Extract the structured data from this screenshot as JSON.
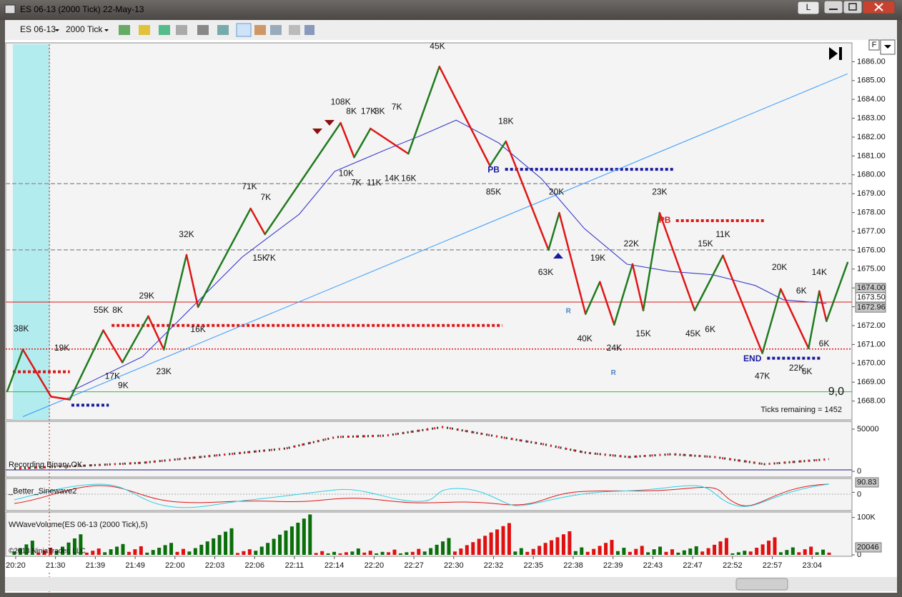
{
  "window": {
    "title": "ES 06-13 (2000 Tick)  22-May-13",
    "layout_button": "L"
  },
  "toolbar": {
    "instrument": "ES 06-13",
    "period": "2000 Tick"
  },
  "chart_data": {
    "type": "line",
    "xlim": [
      -0.25,
      21
    ],
    "xticks": [
      {
        "value": 0,
        "label": "20:20"
      },
      {
        "value": 1,
        "label": "21:30"
      },
      {
        "value": 2,
        "label": "21:39"
      },
      {
        "value": 3,
        "label": "21:49"
      },
      {
        "value": 4,
        "label": "22:00"
      },
      {
        "value": 5,
        "label": "22:03"
      },
      {
        "value": 6,
        "label": "22:06"
      },
      {
        "value": 7,
        "label": "22:11"
      },
      {
        "value": 8,
        "label": "22:14"
      },
      {
        "value": 9,
        "label": "22:20"
      },
      {
        "value": 10,
        "label": "22:27"
      },
      {
        "value": 11,
        "label": "22:30"
      },
      {
        "value": 12,
        "label": "22:32"
      },
      {
        "value": 13,
        "label": "22:35"
      },
      {
        "value": 14,
        "label": "22:38"
      },
      {
        "value": 15,
        "label": "22:39"
      },
      {
        "value": 16,
        "label": "22:43"
      },
      {
        "value": 17,
        "label": "22:47"
      },
      {
        "value": 18,
        "label": "22:52"
      },
      {
        "value": 19,
        "label": "22:57"
      },
      {
        "value": 20,
        "label": "23:04"
      }
    ],
    "ylim": [
      1667,
      1687
    ],
    "yticks": [
      {
        "value": 1668,
        "label": "1668.00"
      },
      {
        "value": 1669,
        "label": "1669.00"
      },
      {
        "value": 1670,
        "label": "1670.00"
      },
      {
        "value": 1671,
        "label": "1671.00"
      },
      {
        "value": 1672,
        "label": "1672.00"
      },
      {
        "value": 1673,
        "label": "1673.00"
      },
      {
        "value": 1674,
        "label": "1674.00"
      },
      {
        "value": 1675,
        "label": "1675.00"
      },
      {
        "value": 1676,
        "label": "1676.00"
      },
      {
        "value": 1677,
        "label": "1677.00"
      },
      {
        "value": 1678,
        "label": "1678.00"
      },
      {
        "value": 1679,
        "label": "1679.00"
      },
      {
        "value": 1680,
        "label": "1680.00"
      },
      {
        "value": 1681,
        "label": "1681.00"
      },
      {
        "value": 1682,
        "label": "1682.00"
      },
      {
        "value": 1683,
        "label": "1683.00"
      },
      {
        "value": 1684,
        "label": "1684.00"
      },
      {
        "value": 1685,
        "label": "1685.00"
      },
      {
        "value": 1686,
        "label": "1686.00"
      }
    ],
    "zigzag": {
      "up_color": "#1f7a1f",
      "down_color": "#e01515",
      "x": [
        -0.21,
        0.18,
        0.89,
        1.36,
        2.2,
        2.68,
        3.33,
        3.72,
        4.29,
        4.58,
        5.9,
        6.26,
        8.16,
        8.5,
        8.91,
        9.86,
        10.64,
        11.91,
        12.31,
        13.38,
        13.65,
        14.31,
        14.67,
        15.03,
        15.49,
        15.76,
        16.17,
        17.05,
        17.76,
        18.75,
        19.21,
        19.91,
        20.18,
        20.36,
        20.89
      ],
      "y": [
        1668.53,
        1670.73,
        1668.23,
        1668.08,
        1671.75,
        1670.05,
        1672.5,
        1670.73,
        1675.75,
        1672.99,
        1678.21,
        1676.85,
        1682.75,
        1680.93,
        1682.45,
        1681.12,
        1685.74,
        1680.48,
        1681.77,
        1676.02,
        1677.98,
        1672.62,
        1674.32,
        1672.05,
        1675.26,
        1672.81,
        1677.98,
        1672.81,
        1675.72,
        1670.54,
        1673.94,
        1670.8,
        1673.83,
        1672.24,
        1675.34
      ]
    },
    "moving_average": {
      "color": "#2a2ac8",
      "x": [
        1.4,
        3.18,
        4.26,
        5.69,
        7.12,
        8.01,
        9.27,
        10.16,
        11.06,
        12.13,
        13.2,
        14.28,
        15.35,
        16.42,
        17.5,
        18.57,
        19.28,
        20.36
      ],
      "y": [
        1668.53,
        1670.35,
        1672.62,
        1675.64,
        1677.91,
        1680.18,
        1681.31,
        1682.07,
        1682.9,
        1681.69,
        1679.8,
        1677.15,
        1675.26,
        1674.88,
        1674.7,
        1674.13,
        1673.37,
        1673.18
      ]
    },
    "trendline": {
      "color": "#3399ff",
      "x": [
        0.18,
        20.89
      ],
      "y": [
        1667.17,
        1685.36
      ]
    },
    "levels": [
      {
        "price": 1673.25,
        "x": [
          -0.25,
          21
        ],
        "color": "#e01515",
        "style": "solid"
      },
      {
        "price": 1670.76,
        "x": [
          -0.25,
          21
        ],
        "color": "#e01515",
        "style": "fine-dotted"
      },
      {
        "price": 1668.49,
        "x": [
          -0.25,
          21
        ],
        "color": "#3cb43c",
        "style": "solid"
      },
      {
        "price": 1679.53,
        "x": [
          -0.25,
          21
        ],
        "color": "#999999",
        "style": "dashed"
      },
      {
        "price": 1676.02,
        "x": [
          -0.25,
          21
        ],
        "color": "#999999",
        "style": "dashed"
      },
      {
        "price": 1672.01,
        "x": [
          2.41,
          12.22
        ],
        "color": "#e01515",
        "style": "dotted"
      },
      {
        "price": 1680.29,
        "x": [
          12.29,
          16.51
        ],
        "color": "#1a1aa0",
        "style": "dotted"
      },
      {
        "price": 1677.57,
        "x": [
          16.58,
          18.8
        ],
        "color": "#e01515",
        "style": "dotted"
      },
      {
        "price": 1670.27,
        "x": [
          18.87,
          20.23
        ],
        "color": "#1a1aa0",
        "style": "dotted"
      },
      {
        "price": 1669.55,
        "x": [
          -0.07,
          1.36
        ],
        "color": "#e01515",
        "style": "dotted"
      },
      {
        "price": 1667.78,
        "x": [
          1.4,
          2.34
        ],
        "color": "#1a1aa0",
        "style": "dotted"
      }
    ],
    "wave_labels": [
      {
        "text": "38K",
        "x": 0.14,
        "y": 1671.82
      },
      {
        "text": "19K",
        "x": 1.16,
        "y": 1670.8
      },
      {
        "text": "55K",
        "x": 2.15,
        "y": 1672.81
      },
      {
        "text": "8K",
        "x": 2.56,
        "y": 1672.81
      },
      {
        "text": "17K",
        "x": 2.43,
        "y": 1669.29
      },
      {
        "text": "9K",
        "x": 2.7,
        "y": 1668.8
      },
      {
        "text": "29K",
        "x": 3.29,
        "y": 1673.56
      },
      {
        "text": "23K",
        "x": 3.72,
        "y": 1669.55
      },
      {
        "text": "32K",
        "x": 4.29,
        "y": 1676.81
      },
      {
        "text": "16K",
        "x": 4.58,
        "y": 1671.78
      },
      {
        "text": "71K",
        "x": 5.87,
        "y": 1679.35
      },
      {
        "text": "7K",
        "x": 6.28,
        "y": 1678.78
      },
      {
        "text": "15K",
        "x": 6.14,
        "y": 1675.57
      },
      {
        "text": "7K",
        "x": 6.4,
        "y": 1675.57
      },
      {
        "text": "108K",
        "x": 8.16,
        "y": 1683.85
      },
      {
        "text": "8K",
        "x": 8.43,
        "y": 1683.35
      },
      {
        "text": "17K",
        "x": 8.86,
        "y": 1683.35
      },
      {
        "text": "8K",
        "x": 9.14,
        "y": 1683.35
      },
      {
        "text": "7K",
        "x": 9.57,
        "y": 1683.58
      },
      {
        "text": "10K",
        "x": 8.3,
        "y": 1680.06
      },
      {
        "text": "7K",
        "x": 8.55,
        "y": 1679.57
      },
      {
        "text": "11K",
        "x": 9.0,
        "y": 1679.57
      },
      {
        "text": "14K",
        "x": 9.45,
        "y": 1679.8
      },
      {
        "text": "16K",
        "x": 9.87,
        "y": 1679.8
      },
      {
        "text": "45K",
        "x": 10.59,
        "y": 1686.79
      },
      {
        "text": "18K",
        "x": 12.31,
        "y": 1682.82
      },
      {
        "text": "85K",
        "x": 12.0,
        "y": 1679.08
      },
      {
        "text": "20K",
        "x": 13.58,
        "y": 1679.08
      },
      {
        "text": "63K",
        "x": 13.31,
        "y": 1674.81
      },
      {
        "text": "19K",
        "x": 14.62,
        "y": 1675.57
      },
      {
        "text": "40K",
        "x": 14.29,
        "y": 1671.29
      },
      {
        "text": "24K",
        "x": 15.03,
        "y": 1670.8
      },
      {
        "text": "22K",
        "x": 15.46,
        "y": 1676.32
      },
      {
        "text": "15K",
        "x": 15.76,
        "y": 1671.56
      },
      {
        "text": "23K",
        "x": 16.17,
        "y": 1679.08
      },
      {
        "text": "11K",
        "x": 17.76,
        "y": 1676.81
      },
      {
        "text": "15K",
        "x": 17.32,
        "y": 1676.32
      },
      {
        "text": "45K",
        "x": 17.01,
        "y": 1671.56
      },
      {
        "text": "6K",
        "x": 17.44,
        "y": 1671.78
      },
      {
        "text": "20K",
        "x": 19.18,
        "y": 1675.07
      },
      {
        "text": "6K",
        "x": 19.73,
        "y": 1673.83
      },
      {
        "text": "14K",
        "x": 20.18,
        "y": 1674.81
      },
      {
        "text": "47K",
        "x": 18.75,
        "y": 1669.29
      },
      {
        "text": "22K",
        "x": 19.61,
        "y": 1669.74
      },
      {
        "text": "6K",
        "x": 19.87,
        "y": 1669.55
      },
      {
        "text": "6K",
        "x": 20.3,
        "y": 1671.03
      }
    ],
    "annotations": [
      {
        "text": "PB",
        "x": 12.0,
        "y": 1680.25,
        "color": "#1a1aa0"
      },
      {
        "text": "PB",
        "x": 16.3,
        "y": 1677.57,
        "color": "#e01515"
      },
      {
        "text": "END",
        "x": 18.5,
        "y": 1670.23,
        "color": "#1a1aa0"
      },
      {
        "text": "R",
        "x": 13.88,
        "y": 1672.77,
        "color": "#4a86c8"
      },
      {
        "text": "R",
        "x": 15.01,
        "y": 1669.48,
        "color": "#4a86c8"
      }
    ],
    "price_markers": [
      {
        "value": 1674,
        "label": "1674.00",
        "color": "#c8c8c8"
      },
      {
        "value": 1673.5,
        "label": "1673.50",
        "color": "#ffffff"
      },
      {
        "value": 1672.96,
        "label": "1672.96",
        "color": "#c8c8c8"
      }
    ],
    "ticks_remaining": "Ticks remaining = 1452",
    "corner_label": "9,0"
  },
  "panels": {
    "delta": {
      "label": "Recording Binary OK",
      "ylim": [
        -5000,
        57600
      ],
      "yticks": [
        50000,
        0
      ]
    },
    "sinewave": {
      "label": "_Better_Sinewave2",
      "ylim": [
        -160,
        120
      ],
      "yticks": [
        0
      ],
      "current": {
        "value": 90.83,
        "label": "90.83"
      }
    },
    "volume": {
      "label": "WWaveVolume(ES 06-13 (2000 Tick),5)",
      "copyright": "©2013 NinjaTrader, LLC",
      "ylim": [
        0,
        105000
      ],
      "yticks": [
        {
          "value": 100000,
          "label": "100K"
        },
        0
      ],
      "current": 20046,
      "up_color": "#0a6e0a",
      "down_color": "#e01010",
      "waves": [
        {
          "direction": "up",
          "values": [
            9000,
            18000,
            28000,
            38000
          ]
        },
        {
          "direction": "down",
          "values": [
            6000,
            12000,
            19000
          ]
        },
        {
          "direction": "up",
          "values": [
            11000,
            22000,
            33000,
            44000,
            55000
          ]
        },
        {
          "direction": "down",
          "values": [
            6000,
            11000,
            17000
          ]
        },
        {
          "direction": "up",
          "values": [
            7000,
            15000,
            22000,
            29000
          ]
        },
        {
          "direction": "down",
          "values": [
            8000,
            15000,
            23000
          ]
        },
        {
          "direction": "up",
          "values": [
            6000,
            13000,
            19000,
            26000,
            32000
          ]
        },
        {
          "direction": "down",
          "values": [
            8000,
            16000
          ]
        },
        {
          "direction": "up",
          "values": [
            9000,
            18000,
            27000,
            36000,
            44000,
            53000,
            62000,
            71000
          ]
        },
        {
          "direction": "down",
          "values": [
            5000,
            10000,
            15000
          ]
        },
        {
          "direction": "up",
          "values": [
            11000,
            22000,
            32000,
            43000,
            54000,
            65000,
            76000,
            86000,
            97000,
            108000
          ]
        },
        {
          "direction": "down",
          "values": [
            5000,
            10000
          ]
        },
        {
          "direction": "up",
          "values": [
            4000,
            8000
          ]
        },
        {
          "direction": "down",
          "values": [
            4000,
            7000
          ]
        },
        {
          "direction": "up",
          "values": [
            9000,
            17000
          ]
        },
        {
          "direction": "down",
          "values": [
            6000,
            11000
          ]
        },
        {
          "direction": "up",
          "values": [
            4000,
            8000
          ]
        },
        {
          "direction": "down",
          "values": [
            7000,
            14000
          ]
        },
        {
          "direction": "up",
          "values": [
            4000,
            7000
          ]
        },
        {
          "direction": "down",
          "values": [
            8000,
            16000
          ]
        },
        {
          "direction": "up",
          "values": [
            9000,
            18000,
            27000,
            36000,
            45000
          ]
        },
        {
          "direction": "down",
          "values": [
            9000,
            17000,
            26000,
            34000,
            43000,
            51000,
            60000,
            68000,
            77000,
            85000
          ]
        },
        {
          "direction": "up",
          "values": [
            9000,
            18000
          ]
        },
        {
          "direction": "down",
          "values": [
            8000,
            16000,
            24000,
            32000,
            39000,
            47000,
            55000,
            63000
          ]
        },
        {
          "direction": "up",
          "values": [
            10000,
            20000
          ]
        },
        {
          "direction": "down",
          "values": [
            8000,
            16000,
            24000,
            32000,
            40000
          ]
        },
        {
          "direction": "up",
          "values": [
            10000,
            19000
          ]
        },
        {
          "direction": "down",
          "values": [
            8000,
            16000,
            24000
          ]
        },
        {
          "direction": "up",
          "values": [
            7000,
            15000,
            22000
          ]
        },
        {
          "direction": "down",
          "values": [
            8000,
            15000
          ]
        },
        {
          "direction": "up",
          "values": [
            6000,
            12000,
            17000,
            23000
          ]
        },
        {
          "direction": "down",
          "values": [
            9000,
            18000,
            27000,
            36000,
            45000
          ]
        },
        {
          "direction": "up",
          "values": [
            4000,
            7000,
            11000
          ]
        },
        {
          "direction": "down",
          "values": [
            9000,
            19000,
            28000,
            38000,
            47000
          ]
        },
        {
          "direction": "up",
          "values": [
            7000,
            13000,
            20000
          ]
        },
        {
          "direction": "down",
          "values": [
            7000,
            15000,
            22000
          ]
        },
        {
          "direction": "up",
          "values": [
            7000,
            14000
          ]
        },
        {
          "direction": "down",
          "values": [
            6000
          ]
        }
      ]
    }
  }
}
